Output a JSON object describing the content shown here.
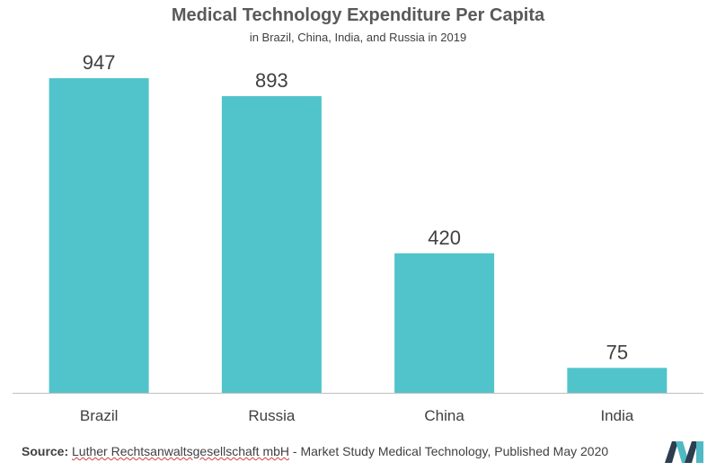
{
  "chart_data": {
    "type": "bar",
    "title": "Medical Technology Expenditure Per Capita",
    "subtitle": "in Brazil, China, India, and Russia in 2019",
    "categories": [
      "Brazil",
      "Russia",
      "China",
      "India"
    ],
    "values": [
      947,
      893,
      420,
      75
    ],
    "xlabel": "",
    "ylabel": "",
    "ylim": [
      0,
      947
    ],
    "grid": false,
    "legend": "none",
    "bar_color": "#51C4CB",
    "axis_color": "#bfbfbf"
  },
  "source": {
    "label": "Source:",
    "name": "Luther Rechtsanwaltsgesellschaft mbH",
    "rest": " - Market Study Medical Technology, Published May 2020"
  },
  "logo": {
    "icon": "mordor-intelligence-logo-icon",
    "colors": [
      "#2c3e50",
      "#4fb9c4"
    ]
  }
}
